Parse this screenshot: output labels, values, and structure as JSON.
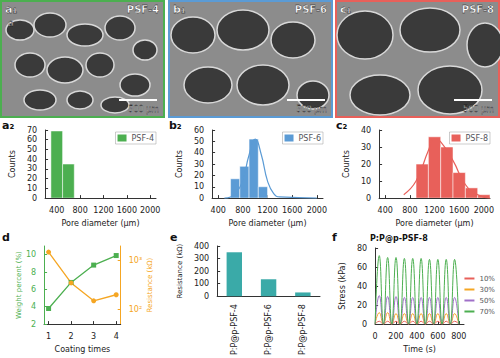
{
  "chart_data": [
    {
      "type": "image",
      "panel_label": "a₁",
      "annotation": "a",
      "title": "PSF-4",
      "scale_bar": "500 μm",
      "color": "#4caf50"
    },
    {
      "type": "image",
      "panel_label": "b₁",
      "title": "PSF-6",
      "scale_bar": "500 μm",
      "color": "#5b9bd5"
    },
    {
      "type": "image",
      "panel_label": "c₁",
      "title": "PSF-8",
      "scale_bar": "500 μm",
      "color": "#e8605a"
    },
    {
      "type": "histogram",
      "panel_label": "a₂",
      "series_name": "PSF-4",
      "color": "#4caf50",
      "bins": [
        300,
        500,
        700
      ],
      "counts": [
        69,
        35
      ],
      "xlabel": "Pore diameter (μm)",
      "ylabel": "Counts",
      "xlim": [
        200,
        2100
      ],
      "xticks": [
        400,
        800,
        1200,
        1600,
        2000
      ],
      "ylim": [
        0,
        70
      ],
      "yticks": [
        0,
        10,
        20,
        30,
        40,
        50,
        60,
        70
      ],
      "legend": "upper right"
    },
    {
      "type": "histogram",
      "panel_label": "b₂",
      "series_name": "PSF-6",
      "color": "#5b9bd5",
      "bins": [
        600,
        750,
        900,
        1050,
        1200
      ],
      "counts": [
        17,
        28,
        52,
        10
      ],
      "fit": {
        "x": [
          500,
          600,
          700,
          800,
          900,
          1000,
          1100,
          1200,
          1300,
          1400,
          2000
        ],
        "values": [
          0,
          1,
          5,
          16,
          38,
          52,
          38,
          15,
          4,
          1,
          0
        ]
      },
      "xlabel": "Pore diameter (μm)",
      "ylabel": "Counts",
      "xlim": [
        300,
        2100
      ],
      "xticks": [
        400,
        800,
        1200,
        1600,
        2000
      ],
      "ylim": [
        0,
        60
      ],
      "yticks": [
        0,
        10,
        20,
        30,
        40,
        50,
        60
      ],
      "legend": "upper right"
    },
    {
      "type": "histogram",
      "panel_label": "c₂",
      "series_name": "PSF-8",
      "color": "#e8605a",
      "bins": [
        900,
        1100,
        1300,
        1500,
        1700,
        1900,
        2100
      ],
      "counts": [
        20,
        36,
        30,
        15,
        6,
        2
      ],
      "fit": {
        "x": [
          700,
          900,
          1100,
          1200,
          1300,
          1500,
          1700,
          1900,
          2100
        ],
        "values": [
          2,
          10,
          28,
          35,
          33,
          22,
          8,
          2,
          0
        ]
      },
      "xlabel": "Pore diameter (μm)",
      "ylabel": "Counts",
      "xlim": [
        300,
        2100
      ],
      "xticks": [
        400,
        800,
        1200,
        1600,
        2000
      ],
      "ylim": [
        0,
        40
      ],
      "yticks": [
        0,
        10,
        20,
        30,
        40
      ],
      "legend": "upper right"
    },
    {
      "type": "line",
      "panel_label": "d",
      "xlabel": "Coating times",
      "ylabel": "Weight percent (%)",
      "y2label": "Resistance (kΩ)",
      "x": [
        1,
        2,
        3,
        4
      ],
      "xlim": [
        0.8,
        4.2
      ],
      "xticks": [
        1,
        2,
        3,
        4
      ],
      "ylim": [
        2,
        11
      ],
      "yticks": [
        2,
        4,
        6,
        8,
        10
      ],
      "y2lim": [
        50,
        2000
      ],
      "y2ticks": [
        {
          "value": 100,
          "label": "10²"
        },
        {
          "value": 1000,
          "label": "10³"
        }
      ],
      "log": "y2",
      "series": [
        {
          "color": "#4caf50",
          "marker": "square",
          "values": [
            3.8,
            6.8,
            8.8,
            9.9
          ]
        },
        {
          "color": "#f5a623",
          "marker": "circle",
          "axis": "y2",
          "values": [
            1500,
            350,
            150,
            200
          ]
        }
      ]
    },
    {
      "type": "bar",
      "panel_label": "e",
      "ylabel": "Resistance (kΩ)",
      "categories": [
        "P:P@p-PSF-4",
        "P:P@p-PSF-6",
        "P:P@p-PSF-8"
      ],
      "values": [
        350,
        135,
        30
      ],
      "color": "#3aaaa8",
      "ylim": [
        0,
        400
      ],
      "yticks": [
        0,
        100,
        200,
        300,
        400
      ]
    },
    {
      "type": "line",
      "panel_label": "f",
      "title": "P:P@p-PSF-8",
      "xlabel": "Time (s)",
      "ylabel": "Stress (kPa)",
      "x": [
        0,
        40,
        80,
        120,
        160,
        200,
        240,
        280,
        320,
        360,
        400,
        440,
        480,
        520,
        560,
        600,
        640,
        680,
        720,
        760,
        800
      ],
      "xlim": [
        0,
        850
      ],
      "xticks": [
        0,
        200,
        400,
        600,
        800
      ],
      "ylim": [
        0,
        80
      ],
      "yticks": [
        0,
        20,
        40,
        60,
        80
      ],
      "legend": "right",
      "series": [
        {
          "name": "10%",
          "color": "#e8605a",
          "values": [
            0,
            3,
            0,
            3,
            0,
            3,
            0,
            3,
            0,
            3,
            0,
            3,
            0,
            3,
            0,
            3,
            0,
            3,
            0,
            3,
            0
          ]
        },
        {
          "name": "30%",
          "color": "#f5a623",
          "values": [
            0,
            12,
            0,
            12,
            0,
            11,
            0,
            11,
            0,
            11,
            0,
            11,
            0,
            11,
            0,
            11,
            0,
            11,
            0,
            11,
            0
          ]
        },
        {
          "name": "50%",
          "color": "#a070c8",
          "values": [
            0,
            30,
            0,
            29,
            0,
            29,
            0,
            28,
            0,
            28,
            0,
            28,
            0,
            28,
            0,
            28,
            0,
            28,
            0,
            28,
            0
          ]
        },
        {
          "name": "70%",
          "color": "#4caf50",
          "values": [
            0,
            72,
            0,
            70,
            0,
            70,
            0,
            69,
            0,
            69,
            0,
            69,
            0,
            68,
            0,
            68,
            0,
            68,
            0,
            68,
            0
          ]
        }
      ]
    }
  ]
}
